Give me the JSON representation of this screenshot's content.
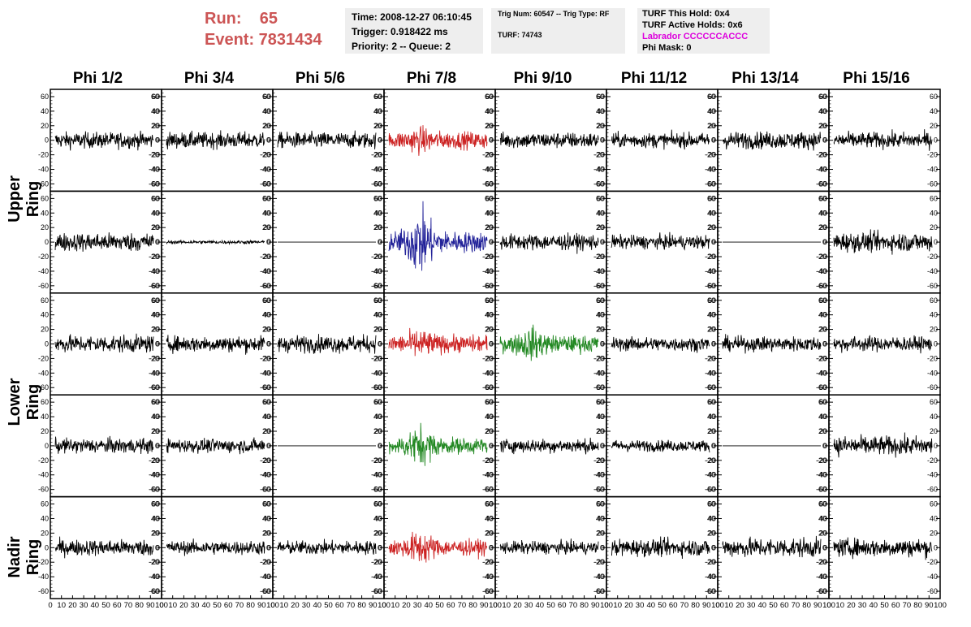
{
  "header": {
    "run_label": "Run:    65",
    "event_label": "Event: 7831434"
  },
  "info_box_1": {
    "time": "Time: 2008-12-27 06:10:45",
    "trigger": "Trigger: 0.918422 ms",
    "priority": "Priority: 2 -- Queue: 2"
  },
  "info_box_2": {
    "trig": "Trig Num: 60547 -- Trig Type: RF",
    "turf": "TURF: 74743"
  },
  "info_box_3": {
    "this_hold": "TURF This Hold: 0x4",
    "active_holds": "TURF Active Holds: 0x6",
    "labrador": "Labrador CCCCCCACCC",
    "phi_mask": "Phi Mask: 0"
  },
  "columns": [
    "Phi 1/2",
    "Phi 3/4",
    "Phi 5/6",
    "Phi 7/8",
    "Phi 9/10",
    "Phi 11/12",
    "Phi 13/14",
    "Phi 15/16"
  ],
  "rows": [
    "Upper Ring",
    "Lower Ring",
    "Nadir Ring"
  ],
  "colors": {
    "highlight_red": "#cc2222",
    "highlight_blue": "#222299",
    "highlight_green": "#228822",
    "trace": "#000000",
    "title_red": "#cc5555",
    "labrador": "#dd00dd"
  },
  "chart_data": {
    "type": "line",
    "x_ticks": [
      "0",
      "10",
      "20",
      "30",
      "40",
      "50",
      "60",
      "70",
      "80",
      "90",
      "100"
    ],
    "y_ticks_left": [
      "60",
      "40",
      "20",
      "0",
      "-20",
      "-40",
      "-60"
    ],
    "y_ticks_right": [
      "60",
      "40",
      "20",
      "0",
      "-20",
      "-40",
      "-60"
    ],
    "xlim": [
      0,
      100
    ],
    "ylim": [
      -70,
      70
    ],
    "panel_rows": 5,
    "panel_cols": 8,
    "panels": [
      {
        "row": 0,
        "col": 0,
        "color": "#000000",
        "amp": 14,
        "burst": 0
      },
      {
        "row": 0,
        "col": 1,
        "color": "#000000",
        "amp": 14,
        "burst": 0
      },
      {
        "row": 0,
        "col": 2,
        "color": "#000000",
        "amp": 14,
        "burst": 0
      },
      {
        "row": 0,
        "col": 3,
        "color": "#cc2222",
        "amp": 15,
        "burst": 0.6
      },
      {
        "row": 0,
        "col": 4,
        "color": "#000000",
        "amp": 14,
        "burst": 0
      },
      {
        "row": 0,
        "col": 5,
        "color": "#000000",
        "amp": 13,
        "burst": 0
      },
      {
        "row": 0,
        "col": 6,
        "color": "#000000",
        "amp": 15,
        "burst": 0
      },
      {
        "row": 0,
        "col": 7,
        "color": "#000000",
        "amp": 14,
        "burst": 0
      },
      {
        "row": 1,
        "col": 0,
        "color": "#000000",
        "amp": 16,
        "burst": 0
      },
      {
        "row": 1,
        "col": 1,
        "color": "#000000",
        "amp": 3,
        "burst": 0
      },
      {
        "row": 1,
        "col": 2,
        "color": "#000000",
        "amp": 0,
        "burst": 0
      },
      {
        "row": 1,
        "col": 3,
        "color": "#222299",
        "amp": 18,
        "burst": 2.2
      },
      {
        "row": 1,
        "col": 4,
        "color": "#000000",
        "amp": 14,
        "burst": 0
      },
      {
        "row": 1,
        "col": 5,
        "color": "#000000",
        "amp": 12,
        "burst": 0
      },
      {
        "row": 1,
        "col": 6,
        "color": "#000000",
        "amp": 0,
        "burst": 0
      },
      {
        "row": 1,
        "col": 7,
        "color": "#000000",
        "amp": 17,
        "burst": 0
      },
      {
        "row": 2,
        "col": 0,
        "color": "#000000",
        "amp": 15,
        "burst": 0
      },
      {
        "row": 2,
        "col": 1,
        "color": "#000000",
        "amp": 14,
        "burst": 0
      },
      {
        "row": 2,
        "col": 2,
        "color": "#000000",
        "amp": 15,
        "burst": 0
      },
      {
        "row": 2,
        "col": 3,
        "color": "#cc2222",
        "amp": 15,
        "burst": 0.8
      },
      {
        "row": 2,
        "col": 4,
        "color": "#228822",
        "amp": 15,
        "burst": 1.0
      },
      {
        "row": 2,
        "col": 5,
        "color": "#000000",
        "amp": 12,
        "burst": 0
      },
      {
        "row": 2,
        "col": 6,
        "color": "#000000",
        "amp": 13,
        "burst": 0
      },
      {
        "row": 2,
        "col": 7,
        "color": "#000000",
        "amp": 13,
        "burst": 0
      },
      {
        "row": 3,
        "col": 0,
        "color": "#000000",
        "amp": 13,
        "burst": 0
      },
      {
        "row": 3,
        "col": 1,
        "color": "#000000",
        "amp": 12,
        "burst": 0
      },
      {
        "row": 3,
        "col": 2,
        "color": "#000000",
        "amp": 0,
        "burst": 0
      },
      {
        "row": 3,
        "col": 3,
        "color": "#228822",
        "amp": 14,
        "burst": 1.6
      },
      {
        "row": 3,
        "col": 4,
        "color": "#000000",
        "amp": 12,
        "burst": 0
      },
      {
        "row": 3,
        "col": 5,
        "color": "#000000",
        "amp": 10,
        "burst": 0
      },
      {
        "row": 3,
        "col": 6,
        "color": "#000000",
        "amp": 0,
        "burst": 0
      },
      {
        "row": 3,
        "col": 7,
        "color": "#000000",
        "amp": 17,
        "burst": 0
      },
      {
        "row": 4,
        "col": 0,
        "color": "#000000",
        "amp": 14,
        "burst": 0
      },
      {
        "row": 4,
        "col": 1,
        "color": "#000000",
        "amp": 12,
        "burst": 0
      },
      {
        "row": 4,
        "col": 2,
        "color": "#000000",
        "amp": 12,
        "burst": 0
      },
      {
        "row": 4,
        "col": 3,
        "color": "#cc2222",
        "amp": 14,
        "burst": 1.2
      },
      {
        "row": 4,
        "col": 4,
        "color": "#000000",
        "amp": 11,
        "burst": 0
      },
      {
        "row": 4,
        "col": 5,
        "color": "#000000",
        "amp": 15,
        "burst": 0
      },
      {
        "row": 4,
        "col": 6,
        "color": "#000000",
        "amp": 17,
        "burst": 0
      },
      {
        "row": 4,
        "col": 7,
        "color": "#000000",
        "amp": 16,
        "burst": 0
      }
    ]
  }
}
